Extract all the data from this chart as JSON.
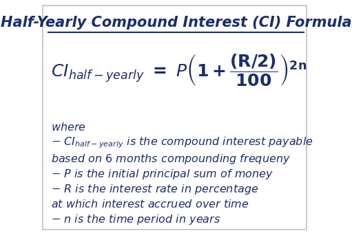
{
  "title": "Half-Yearly Compound Interest (CI) Formula",
  "title_color": "#1a2e6e",
  "title_fontsize": 15,
  "formula_color": "#1a2e6e",
  "formula_fontsize": 18,
  "text_color": "#1a2e6e",
  "bg_color": "#ffffff",
  "border_color": "#c0c0c0",
  "desc_fontsize": 11.5
}
